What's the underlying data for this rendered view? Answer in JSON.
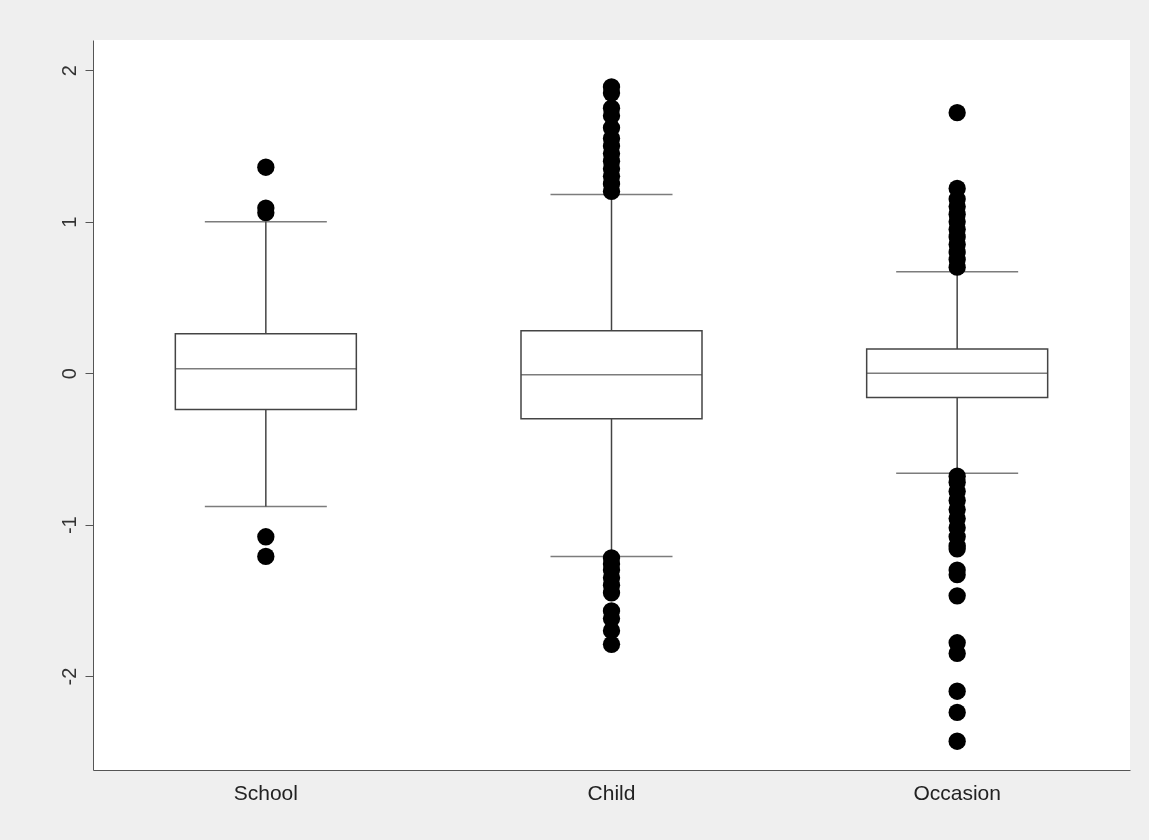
{
  "chart_data": {
    "type": "box",
    "categories": [
      "School",
      "Child",
      "Occasion"
    ],
    "ylim": [
      -2.62,
      2.2
    ],
    "yticks": [
      -2,
      -1,
      0,
      1,
      2
    ],
    "grid": false,
    "boxes": [
      {
        "low": -0.88,
        "q1": -0.24,
        "median": 0.03,
        "q3": 0.26,
        "high": 1.0,
        "outliers": [
          1.36,
          1.09,
          1.06,
          -1.08,
          -1.21
        ]
      },
      {
        "low": -1.21,
        "q1": -0.3,
        "median": -0.01,
        "q3": 0.28,
        "high": 1.18,
        "outliers": [
          1.89,
          1.85,
          1.75,
          1.7,
          1.62,
          1.55,
          1.5,
          1.45,
          1.4,
          1.35,
          1.3,
          1.25,
          1.2,
          -1.22,
          -1.26,
          -1.3,
          -1.35,
          -1.4,
          -1.45,
          -1.57,
          -1.62,
          -1.7,
          -1.79
        ]
      },
      {
        "low": -0.66,
        "q1": -0.16,
        "median": 0.0,
        "q3": 0.16,
        "high": 0.67,
        "outliers": [
          1.72,
          1.22,
          1.15,
          1.1,
          1.05,
          1.0,
          0.95,
          0.9,
          0.85,
          0.8,
          0.75,
          0.7,
          -0.68,
          -0.72,
          -0.78,
          -0.84,
          -0.9,
          -0.96,
          -1.02,
          -1.08,
          -1.14,
          -1.16,
          -1.3,
          -1.33,
          -1.47,
          -1.78,
          -1.85,
          -2.1,
          -2.24,
          -2.43
        ]
      }
    ]
  }
}
